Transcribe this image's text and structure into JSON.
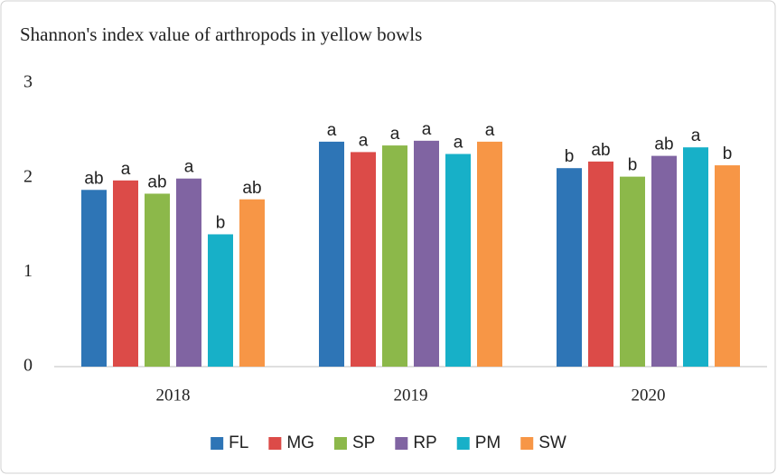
{
  "chart_data": {
    "type": "bar",
    "title": "Shannon's index value of arthropods in yellow bowls",
    "categories": [
      "2018",
      "2019",
      "2020"
    ],
    "series": [
      {
        "name": "FL",
        "color": "#2e75b6",
        "values": [
          1.87,
          2.38,
          2.1
        ],
        "letters": [
          "ab",
          "a",
          "b"
        ]
      },
      {
        "name": "MG",
        "color": "#dc4b48",
        "values": [
          1.97,
          2.27,
          2.17
        ],
        "letters": [
          "a",
          "a",
          "ab"
        ]
      },
      {
        "name": "SP",
        "color": "#8cb84a",
        "values": [
          1.83,
          2.34,
          2.01
        ],
        "letters": [
          "ab",
          "a",
          "b"
        ]
      },
      {
        "name": "RP",
        "color": "#8064a2",
        "values": [
          1.99,
          2.39,
          2.23
        ],
        "letters": [
          "a",
          "a",
          "ab"
        ]
      },
      {
        "name": "PM",
        "color": "#17b0c8",
        "values": [
          1.4,
          2.25,
          2.32
        ],
        "letters": [
          "b",
          "a",
          "a"
        ]
      },
      {
        "name": "SW",
        "color": "#f79646",
        "values": [
          1.77,
          2.38,
          2.13
        ],
        "letters": [
          "ab",
          "a",
          "b"
        ]
      }
    ],
    "ylim": [
      0,
      3
    ],
    "yticks": [
      0,
      1,
      2,
      3
    ],
    "grid": false,
    "legend": "bottom"
  }
}
